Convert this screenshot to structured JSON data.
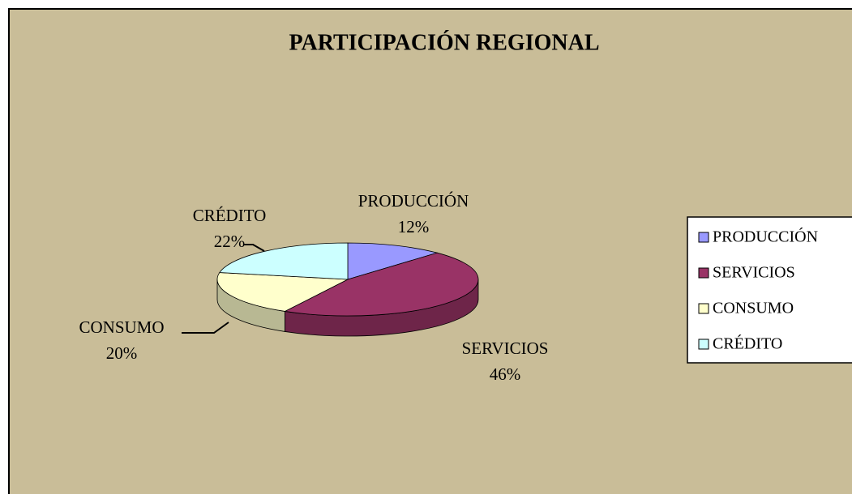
{
  "chart_data": {
    "type": "pie3d",
    "title": "PARTICIPACIÓN REGIONAL",
    "categories": [
      "PRODUCCIÓN",
      "SERVICIOS",
      "CONSUMO",
      "CRÉDITO"
    ],
    "values": [
      12,
      46,
      20,
      22
    ],
    "value_labels": [
      "12%",
      "46%",
      "20%",
      "22%"
    ],
    "colors": [
      "#9999ff",
      "#993366",
      "#ffffcc",
      "#ccffff"
    ],
    "legend": "right"
  }
}
